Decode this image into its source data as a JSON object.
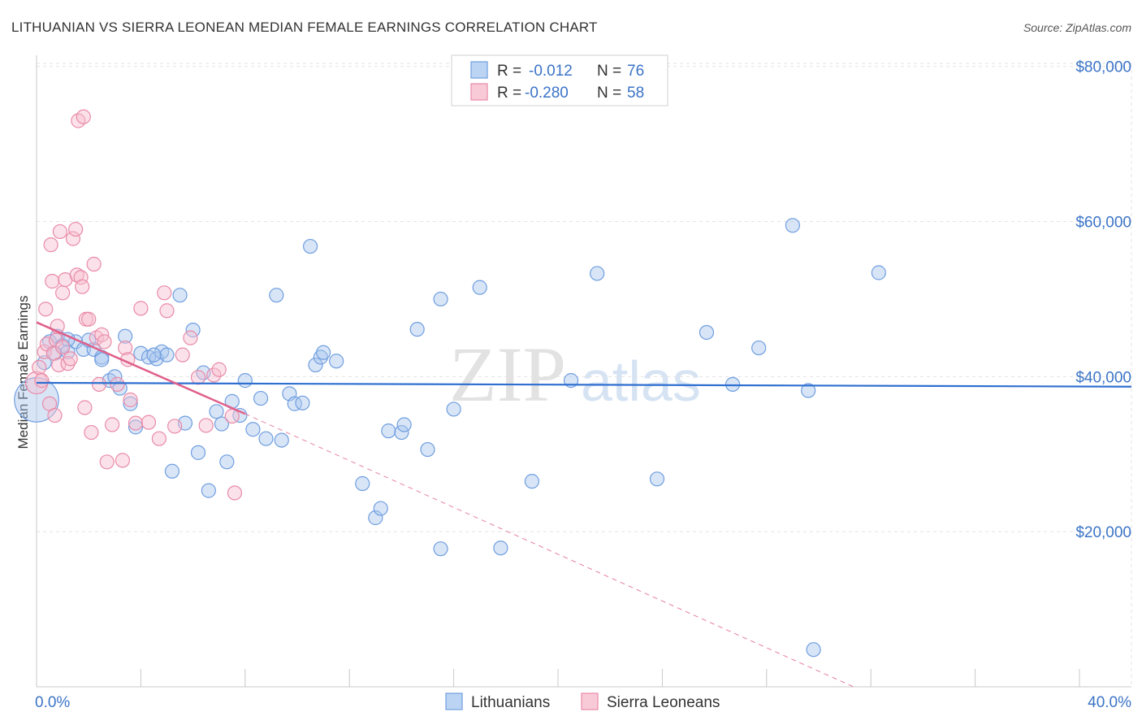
{
  "chart_data": {
    "type": "scatter",
    "title": "LITHUANIAN VS SIERRA LEONEAN MEDIAN FEMALE EARNINGS CORRELATION CHART",
    "source": "Source: ZipAtlas.com",
    "xlabel": "",
    "ylabel": "Median Female Earnings",
    "xlim": [
      0,
      40
    ],
    "ylim": [
      0,
      85000
    ],
    "x_tick_labels": {
      "left": "0.0%",
      "right": "40.0%"
    },
    "y_ticks": [
      {
        "value": 20000,
        "label": "$20,000"
      },
      {
        "value": 40000,
        "label": "$40,000"
      },
      {
        "value": 60000,
        "label": "$60,000"
      },
      {
        "value": 80000,
        "label": "$80,000"
      }
    ],
    "grid": true,
    "legend_position": "top-center",
    "watermark": {
      "part1": "ZIP",
      "part2": "atlas"
    },
    "colors": {
      "blue": "#6f9ee0",
      "blue_fill": "#a9c6ee",
      "blue_line": "#2f6fd0",
      "pink": "#e98aa8",
      "pink_fill": "#f6bfd0",
      "pink_line": "#e0608a",
      "tick": "#3b74c7",
      "grid": "#e3e3e3"
    },
    "legend": [
      {
        "series": "Lithuanians",
        "r_label": "R = ",
        "r_value": "-0.012",
        "n_label": "N = ",
        "n_value": "76"
      },
      {
        "series": "Sierra Leoneans",
        "r_label": "R = ",
        "r_value": "-0.280",
        "n_label": "N = ",
        "n_value": "58"
      }
    ],
    "series": [
      {
        "name": "Lithuanians",
        "color": "#6f9ee0",
        "trend": {
          "x0": 0,
          "y0": 39200,
          "x1": 42,
          "y1": 38700
        },
        "points": [
          [
            0.0,
            37000,
            3.2
          ],
          [
            0.5,
            44500,
            1
          ],
          [
            0.8,
            45200,
            1
          ],
          [
            1.0,
            44000,
            1
          ],
          [
            1.2,
            43200,
            1
          ],
          [
            1.5,
            44500,
            1
          ],
          [
            1.8,
            43500,
            1
          ],
          [
            2.2,
            43500,
            1
          ],
          [
            2.5,
            42500,
            1
          ],
          [
            2.8,
            39500,
            1
          ],
          [
            3.2,
            38500,
            1
          ],
          [
            3.4,
            45200,
            1
          ],
          [
            3.6,
            36500,
            1
          ],
          [
            3.8,
            33500,
            1
          ],
          [
            4.0,
            43000,
            1
          ],
          [
            4.3,
            42500,
            1
          ],
          [
            4.6,
            42300,
            1
          ],
          [
            4.8,
            43200,
            1
          ],
          [
            5.0,
            42800,
            1
          ],
          [
            5.2,
            27800,
            1
          ],
          [
            5.5,
            50500,
            1
          ],
          [
            5.7,
            34000,
            1
          ],
          [
            6.0,
            46000,
            1
          ],
          [
            6.2,
            30200,
            1
          ],
          [
            6.4,
            40500,
            1
          ],
          [
            6.6,
            25300,
            1
          ],
          [
            6.9,
            35500,
            1
          ],
          [
            7.1,
            33900,
            1
          ],
          [
            7.3,
            29000,
            1
          ],
          [
            7.5,
            36800,
            1
          ],
          [
            7.8,
            35000,
            1
          ],
          [
            8.0,
            39500,
            1
          ],
          [
            8.3,
            33200,
            1
          ],
          [
            8.6,
            37200,
            1
          ],
          [
            8.8,
            32000,
            1
          ],
          [
            9.2,
            50500,
            1
          ],
          [
            9.4,
            31800,
            1
          ],
          [
            9.7,
            37800,
            1
          ],
          [
            9.9,
            36500,
            1
          ],
          [
            10.2,
            36600,
            1
          ],
          [
            10.5,
            56800,
            1
          ],
          [
            10.7,
            41500,
            1
          ],
          [
            10.9,
            42500,
            1
          ],
          [
            11.0,
            43100,
            1
          ],
          [
            11.5,
            42000,
            1
          ],
          [
            12.5,
            26200,
            1
          ],
          [
            13.0,
            21800,
            1
          ],
          [
            13.2,
            23000,
            1
          ],
          [
            13.5,
            33000,
            1
          ],
          [
            14.0,
            32800,
            1
          ],
          [
            14.1,
            33800,
            1
          ],
          [
            14.6,
            46100,
            1
          ],
          [
            15.0,
            30600,
            1
          ],
          [
            15.5,
            50000,
            1
          ],
          [
            15.5,
            17800,
            1
          ],
          [
            16.0,
            35800,
            1
          ],
          [
            17.0,
            51500,
            1
          ],
          [
            17.8,
            17900,
            1
          ],
          [
            19.0,
            26500,
            1
          ],
          [
            20.5,
            39500,
            1
          ],
          [
            21.5,
            53300,
            1
          ],
          [
            23.8,
            26800,
            1
          ],
          [
            25.7,
            45700,
            1
          ],
          [
            26.7,
            39000,
            1
          ],
          [
            27.7,
            43700,
            1
          ],
          [
            29.0,
            59500,
            1
          ],
          [
            29.6,
            38200,
            1
          ],
          [
            29.8,
            4800,
            1
          ],
          [
            32.3,
            53400,
            1
          ],
          [
            1.2,
            44800,
            1
          ],
          [
            2.0,
            44700,
            1
          ],
          [
            0.3,
            41800,
            1
          ],
          [
            0.7,
            43000,
            1
          ],
          [
            3.0,
            40000,
            1
          ],
          [
            2.5,
            42200,
            1
          ],
          [
            4.5,
            42800,
            1
          ]
        ]
      },
      {
        "name": "Sierra Leoneans",
        "color": "#e98aa8",
        "trend": {
          "x0": 0,
          "y0": 47000,
          "x1": 8.0,
          "y1": 35200
        },
        "trend_dashed": {
          "x0": 8.0,
          "y0": 35200,
          "x1": 32,
          "y1": -1000
        },
        "points": [
          [
            0.0,
            39200,
            1.6
          ],
          [
            0.1,
            41200,
            1
          ],
          [
            0.2,
            39500,
            1
          ],
          [
            0.3,
            43200,
            1
          ],
          [
            0.35,
            48700,
            1
          ],
          [
            0.4,
            44200,
            1
          ],
          [
            0.5,
            36500,
            1
          ],
          [
            0.55,
            57000,
            1
          ],
          [
            0.6,
            52300,
            1
          ],
          [
            0.65,
            43000,
            1
          ],
          [
            0.7,
            35000,
            1
          ],
          [
            0.75,
            44700,
            1
          ],
          [
            0.8,
            46500,
            1
          ],
          [
            0.85,
            41500,
            1
          ],
          [
            0.9,
            58700,
            1
          ],
          [
            1.0,
            50800,
            1
          ],
          [
            1.0,
            43800,
            1
          ],
          [
            1.1,
            52500,
            1
          ],
          [
            1.2,
            41700,
            1
          ],
          [
            1.3,
            42300,
            1
          ],
          [
            1.4,
            57800,
            1
          ],
          [
            1.5,
            59000,
            1
          ],
          [
            1.55,
            53100,
            1
          ],
          [
            1.6,
            73000,
            1
          ],
          [
            1.7,
            52800,
            1
          ],
          [
            1.75,
            51600,
            1
          ],
          [
            1.8,
            73500,
            1
          ],
          [
            1.85,
            36000,
            1
          ],
          [
            1.9,
            47400,
            1
          ],
          [
            2.0,
            47400,
            1
          ],
          [
            2.1,
            32800,
            1
          ],
          [
            2.2,
            54500,
            1
          ],
          [
            2.3,
            45000,
            1
          ],
          [
            2.4,
            39000,
            1
          ],
          [
            2.5,
            45400,
            1
          ],
          [
            2.6,
            44500,
            1
          ],
          [
            2.7,
            29000,
            1
          ],
          [
            2.9,
            33800,
            1
          ],
          [
            3.1,
            39000,
            1
          ],
          [
            3.3,
            29200,
            1
          ],
          [
            3.4,
            43700,
            1
          ],
          [
            3.5,
            42200,
            1
          ],
          [
            3.6,
            37000,
            1
          ],
          [
            3.8,
            34000,
            1
          ],
          [
            4.0,
            48800,
            1
          ],
          [
            4.3,
            34100,
            1
          ],
          [
            4.7,
            32000,
            1
          ],
          [
            4.9,
            50800,
            1
          ],
          [
            5.0,
            48500,
            1
          ],
          [
            5.3,
            33600,
            1
          ],
          [
            5.6,
            42800,
            1
          ],
          [
            5.9,
            45000,
            1
          ],
          [
            6.2,
            39900,
            1
          ],
          [
            6.5,
            33700,
            1
          ],
          [
            6.8,
            40200,
            1
          ],
          [
            7.0,
            40900,
            1
          ],
          [
            7.5,
            34900,
            1
          ],
          [
            7.6,
            25000,
            1
          ]
        ]
      }
    ]
  }
}
